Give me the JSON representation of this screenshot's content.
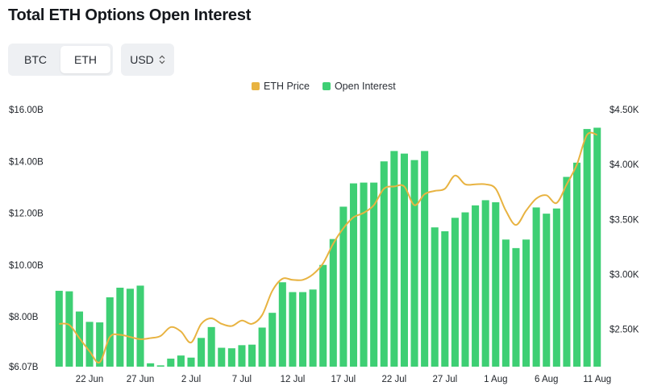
{
  "header": {
    "title": "Total ETH Options Open Interest"
  },
  "controls": {
    "asset_options": [
      "BTC",
      "ETH"
    ],
    "asset_selected": "ETH",
    "currency": "USD",
    "currency_icon": "chevron-up-down-icon"
  },
  "colors": {
    "bar": "#3ecf74",
    "price_line": "#e8b341"
  },
  "chart_data": {
    "type": "bar",
    "title": "Total ETH Options Open Interest",
    "legend": [
      "ETH Price",
      "Open Interest"
    ],
    "legend_position": "top-center",
    "grid": false,
    "left_axis": {
      "ticks": [
        "$6.07B",
        "$8.00B",
        "$10.00B",
        "$12.00B",
        "$14.00B",
        "$16.00B"
      ],
      "tick_values": [
        6.07,
        8.0,
        10.0,
        12.0,
        14.0,
        16.0
      ],
      "ylim": [
        6.07,
        16.0
      ]
    },
    "right_axis": {
      "ticks": [
        "$2.50K",
        "$3.00K",
        "$3.50K",
        "$4.00K",
        "$4.50K"
      ],
      "tick_values": [
        2.5,
        3.0,
        3.5,
        4.0,
        4.5
      ],
      "ylim": [
        2.16,
        4.5
      ]
    },
    "x_ticks": [
      "22 Jun",
      "27 Jun",
      "2 Jul",
      "7 Jul",
      "12 Jul",
      "17 Jul",
      "22 Jul",
      "27 Jul",
      "1 Aug",
      "6 Aug",
      "11 Aug"
    ],
    "x_tick_index": [
      3,
      8,
      13,
      18,
      23,
      28,
      33,
      38,
      43,
      48,
      53
    ],
    "series": [
      {
        "name": "Open Interest",
        "axis": "left",
        "values": [
          9.0,
          8.98,
          8.2,
          7.8,
          7.78,
          8.75,
          9.12,
          9.08,
          9.2,
          6.2,
          6.12,
          6.38,
          6.5,
          6.42,
          7.18,
          7.6,
          6.8,
          6.78,
          6.9,
          6.92,
          7.58,
          8.15,
          9.33,
          8.95,
          8.95,
          9.05,
          10.0,
          11.0,
          12.25,
          13.15,
          13.18,
          13.18,
          14.0,
          14.4,
          14.3,
          14.05,
          14.4,
          11.45,
          11.3,
          11.82,
          12.03,
          12.3,
          12.5,
          12.42,
          10.98,
          10.65,
          10.98,
          12.22,
          11.98,
          12.18,
          13.4,
          13.95,
          15.25,
          15.3
        ]
      },
      {
        "name": "ETH Price",
        "axis": "right",
        "values": [
          2.55,
          2.54,
          2.42,
          2.3,
          2.2,
          2.43,
          2.45,
          2.43,
          2.41,
          2.42,
          2.44,
          2.52,
          2.48,
          2.38,
          2.55,
          2.6,
          2.55,
          2.53,
          2.58,
          2.55,
          2.63,
          2.85,
          2.96,
          2.95,
          2.95,
          3.0,
          3.1,
          3.28,
          3.42,
          3.52,
          3.56,
          3.63,
          3.78,
          3.8,
          3.8,
          3.63,
          3.73,
          3.76,
          3.78,
          3.9,
          3.82,
          3.82,
          3.82,
          3.78,
          3.58,
          3.45,
          3.58,
          3.69,
          3.72,
          3.65,
          3.82,
          4.0,
          4.27,
          4.27
        ]
      }
    ]
  }
}
